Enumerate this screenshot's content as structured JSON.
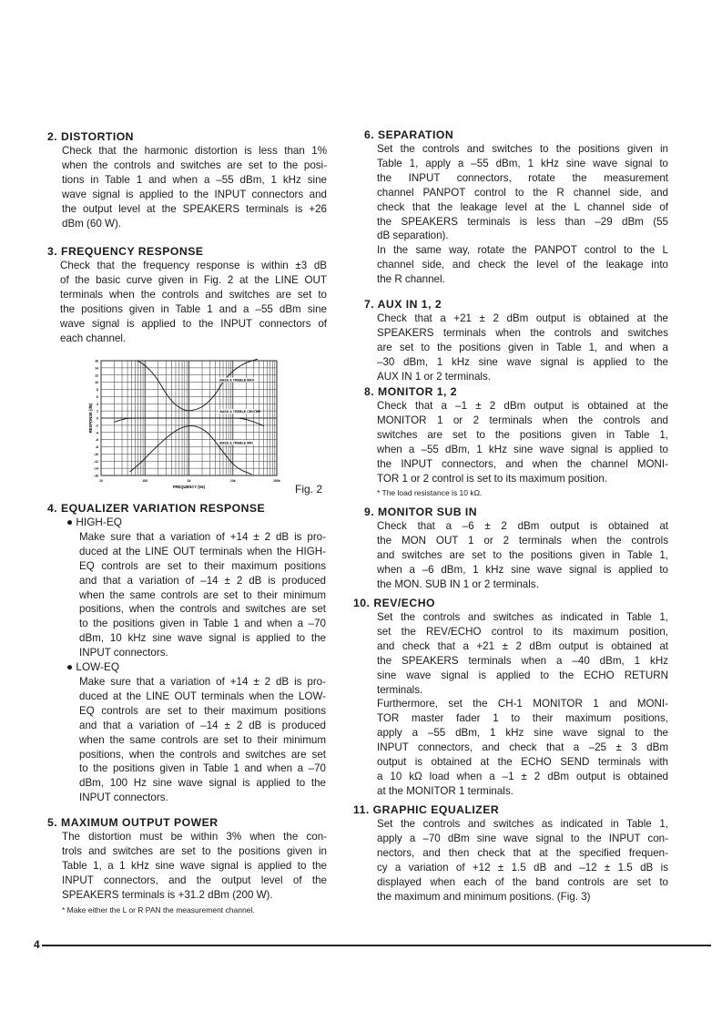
{
  "page_number": "4",
  "sections": {
    "s2": {
      "heading": "2. DISTORTION",
      "blocks": [
        {
          "lines": [
            "Check that the harmonic distortion is less than 1%",
            "when the controls and switches are set to the posi-",
            "tions in Table 1 and when a –55 dBm, 1 kHz sine",
            "wave signal is applied to the INPUT connectors and",
            "the output level at the SPEAKERS terminals is +26",
            "dBm (60 W)."
          ]
        }
      ]
    },
    "s3": {
      "heading": "3. FREQUENCY RESPONSE",
      "blocks": [
        {
          "lines": [
            "Check that the frequency response is within ±3 dB",
            "of the basic curve given in Fig. 2 at the LINE OUT",
            "terminals when the controls and switches are set to",
            "the positions given in Table 1 and a –55 dBm sine",
            "wave signal is applied to the INPUT connectors of",
            "each channel."
          ]
        }
      ]
    },
    "s4": {
      "heading": "4. EQUALIZER VARIATION RESPONSE",
      "blocks": [
        {
          "bullet": "●  HIGH-EQ",
          "lines": [
            "Make sure that a variation of +14 ± 2 dB is pro-",
            "duced at the LINE OUT terminals when the HIGH-",
            "EQ controls are set to their maximum positions",
            "and that a variation of –14 ± 2 dB is produced",
            "when the same controls are set to their minimum",
            "positions, when the controls and switches are set",
            "to the positions given in Table 1 and when a –70",
            "dBm, 10 kHz sine wave signal is applied to the",
            "INPUT connectors."
          ]
        },
        {
          "bullet": "●  LOW-EQ",
          "lines": [
            "Make sure that a variation of +14 ± 2 dB is pro-",
            "duced at the LINE OUT terminals when the LOW-",
            "EQ controls are set to their maximum positions",
            "and that a variation of –14 ± 2 dB is produced",
            "when the same controls are set to their minimum",
            "positions, when the controls and switches are set",
            "to the positions given in Table 1 and when a –70",
            "dBm, 100 Hz sine wave signal is applied to the",
            "INPUT connectors."
          ]
        }
      ]
    },
    "s5": {
      "heading": "5. MAXIMUM OUTPUT POWER",
      "blocks": [
        {
          "lines": [
            "The distortion must be within 3% when the con-",
            "trols and switches are set to the positions given in",
            "Table 1, a 1 kHz sine wave signal is applied to the",
            "INPUT connectors, and the output level of the",
            "SPEAKERS terminals is +31.2 dBm (200 W)."
          ]
        },
        {
          "note": "*   Make either the L or R PAN the measurement channel."
        }
      ]
    },
    "s6": {
      "heading": "6. SEPARATION",
      "blocks": [
        {
          "lines": [
            "Set the controls and switches to the positions given in",
            "Table 1, apply a –55 dBm, 1 kHz sine wave signal to",
            "the INPUT connectors, rotate the measurement",
            "channel PANPOT control to the R channel side, and",
            "check that the leakage level at the L channel side of",
            "the SPEAKERS terminals is less than –29 dBm (55",
            "dB separation)."
          ]
        },
        {
          "lines": [
            "In the same way, rotate the PANPOT control to the L",
            "channel side, and check the level of the leakage into",
            "the R channel."
          ]
        }
      ]
    },
    "s7": {
      "heading": "7. AUX IN 1, 2",
      "blocks": [
        {
          "lines": [
            "Check that a +21 ± 2 dBm output is obtained at the",
            "SPEAKERS terminals when the controls and switches",
            "are set to the positions given in Table 1, and when a",
            "–30 dBm, 1 kHz sine wave signal is applied to the",
            "AUX IN 1 or 2 terminals."
          ]
        }
      ]
    },
    "s8": {
      "heading": "8. MONITOR 1, 2",
      "blocks": [
        {
          "lines": [
            "Check that a –1 ± 2 dBm output is obtained at the",
            "MONITOR 1 or 2 terminals when the controls and",
            "switches are set to the positions given in Table 1,",
            "when a –55 dBm, 1 kHz sine wave signal is applied to",
            "the INPUT connectors, and when the channel MONI-",
            "TOR 1 or 2 control is set to its maximum position."
          ]
        },
        {
          "note": "*   The load resistance is 10 kΩ."
        }
      ]
    },
    "s9": {
      "heading": "9. MONITOR SUB IN",
      "blocks": [
        {
          "lines": [
            "Check that a –6 ± 2 dBm output is obtained at",
            "the MON OUT 1 or 2 terminals when the controls",
            "and switches are set to the positions given in Table 1,",
            "when a –6 dBm, 1 kHz sine wave signal is applied to",
            "the MON. SUB IN 1 or 2 terminals."
          ]
        }
      ]
    },
    "s10": {
      "heading": "10. REV/ECHO",
      "blocks": [
        {
          "lines": [
            "Set the controls and switches as indicated in Table 1,",
            "set the REV/ECHO control to its maximum position,",
            "and check that a +21 ± 2 dBm output is obtained at",
            "the SPEAKERS terminals when a –40 dBm, 1 kHz",
            "sine wave signal is applied to the ECHO RETURN",
            "terminals."
          ]
        },
        {
          "lines": [
            "Furthermore, set the CH-1 MONITOR 1 and MONI-",
            "TOR master fader 1 to their maximum positions,",
            "apply a –55 dBm, 1 kHz sine wave signal to the",
            "INPUT connectors, and check that a –25 ± 3 dBm",
            "output is obtained at the ECHO SEND terminals with",
            "a 10 kΩ load when a –1 ± 2 dBm output is obtained",
            "at the MONITOR 1 terminals."
          ]
        }
      ]
    },
    "s11": {
      "heading": "11. GRAPHIC EQUALIZER",
      "blocks": [
        {
          "lines": [
            "Set the controls and switches as indicated in Table 1,",
            "apply a –70 dBm sine wave signal to the INPUT con-",
            "nectors, and then check that at the specified frequen-",
            "cy a variation of +12 ± 1.5 dB and –12 ± 1.5 dB is",
            "displayed when each of the band controls are set to",
            "the maximum and minimum positions. (Fig. 3)"
          ]
        }
      ]
    }
  },
  "figure": {
    "caption": "Fig. 2"
  },
  "chart_data": {
    "type": "line",
    "xlabel": "FREQUENCY (Hz)",
    "ylabel": "RESPONSE (dB)",
    "xscale": "log",
    "xlim": [
      10,
      100000
    ],
    "ylim": [
      -16,
      16
    ],
    "x_ticks": [
      10,
      100,
      1000,
      10000,
      100000
    ],
    "x_tick_labels": [
      "10",
      "100",
      "1k",
      "10k",
      "100k"
    ],
    "y_ticks": [
      16,
      14,
      12,
      10,
      8,
      6,
      4,
      2,
      0,
      -2,
      -4,
      -6,
      -8,
      -10,
      -12,
      -14,
      -16
    ],
    "grid": true,
    "series": [
      {
        "name": "BASS & TREBLE MAX",
        "x": [
          66,
          100,
          180,
          282,
          450,
          740,
          1000,
          1500,
          2300,
          4000,
          6900,
          15600,
          37000
        ],
        "y": [
          16,
          14.8,
          11.5,
          7.3,
          4,
          2.3,
          2,
          2.4,
          3.5,
          6.5,
          11.4,
          15,
          16.5
        ]
      },
      {
        "name": "BASS & TREBLE CENTER",
        "x": [
          20,
          30,
          41,
          100,
          1000,
          10000,
          15600,
          30000,
          51000
        ],
        "y": [
          -1.1,
          -0.4,
          0,
          0,
          0,
          0,
          0,
          -1,
          -2.2
        ]
      },
      {
        "name": "BASS & TREBLE MIN",
        "x": [
          45,
          80,
          150,
          300,
          600,
          1100,
          1800,
          3000,
          6000,
          12000,
          27000
        ],
        "y": [
          -15,
          -12.5,
          -9,
          -5.5,
          -2.8,
          -2,
          -2.6,
          -4.5,
          -9.5,
          -14,
          -15.7
        ]
      }
    ]
  }
}
